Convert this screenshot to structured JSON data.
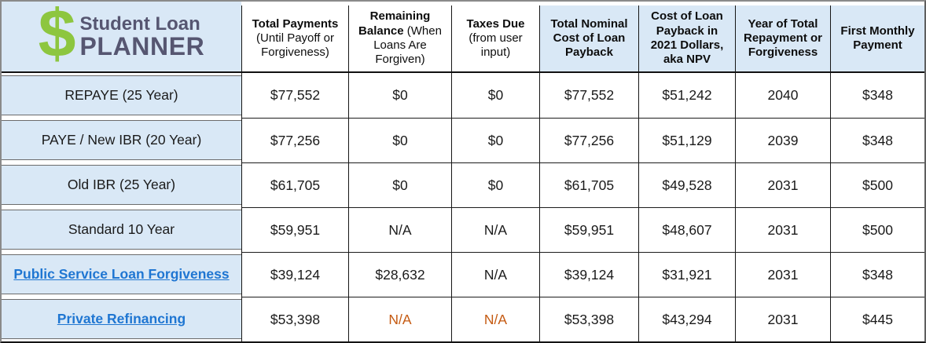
{
  "logo": {
    "dollar": "$",
    "line1": "Student Loan",
    "line2": "PLANNER"
  },
  "header": {
    "columns": [
      {
        "title": "Total Payments",
        "note": "(Until Payoff or Forgiveness)",
        "highlight": false
      },
      {
        "title": "Remaining Balance",
        "note": "(When Loans Are Forgiven)",
        "highlight": false
      },
      {
        "title": "Taxes Due",
        "note": "(from user input)",
        "highlight": false
      },
      {
        "title": "Total Nominal Cost of Loan Payback",
        "note": "",
        "highlight": true
      },
      {
        "title": "Cost of Loan Payback in 2021 Dollars, aka NPV",
        "note": "",
        "highlight": true
      },
      {
        "title": "Year of Total Repayment or Forgiveness",
        "note": "",
        "highlight": true
      },
      {
        "title": "First Monthly Payment",
        "note": "",
        "highlight": true
      }
    ]
  },
  "rows": [
    {
      "label": "REPAYE (25 Year)",
      "is_link": false,
      "orange_value_indices": [],
      "values": [
        "$77,552",
        "$0",
        "$0",
        "$77,552",
        "$51,242",
        "2040",
        "$348"
      ]
    },
    {
      "label": "PAYE / New IBR (20 Year)",
      "is_link": false,
      "orange_value_indices": [],
      "values": [
        "$77,256",
        "$0",
        "$0",
        "$77,256",
        "$51,129",
        "2039",
        "$348"
      ]
    },
    {
      "label": "Old IBR (25 Year)",
      "is_link": false,
      "orange_value_indices": [],
      "values": [
        "$61,705",
        "$0",
        "$0",
        "$61,705",
        "$49,528",
        "2031",
        "$500"
      ]
    },
    {
      "label": "Standard 10 Year",
      "is_link": false,
      "orange_value_indices": [],
      "values": [
        "$59,951",
        "N/A",
        "N/A",
        "$59,951",
        "$48,607",
        "2031",
        "$500"
      ]
    },
    {
      "label": "Public Service Loan Forgiveness",
      "is_link": true,
      "orange_value_indices": [],
      "values": [
        "$39,124",
        "$28,632",
        "N/A",
        "$39,124",
        "$31,921",
        "2031",
        "$348"
      ]
    },
    {
      "label": "Private Refinancing",
      "is_link": true,
      "orange_value_indices": [
        1,
        2
      ],
      "values": [
        "$53,398",
        "N/A",
        "N/A",
        "$53,398",
        "$43,294",
        "2031",
        "$445"
      ]
    }
  ],
  "colors": {
    "highlight_fill": "#d9e8f6",
    "link_blue": "#1f76d2",
    "na_orange": "#c55a11",
    "logo_green": "#8dc63f",
    "logo_navy": "#565671",
    "grid_line": "#161616"
  },
  "chart_data": {
    "type": "table",
    "columns": [
      "Plan",
      "Total Payments (Until Payoff or Forgiveness)",
      "Remaining Balance (When Loans Are Forgiven)",
      "Taxes Due (from user input)",
      "Total Nominal Cost of Loan Payback",
      "Cost of Loan Payback in 2021 Dollars, aka NPV",
      "Year of Total Repayment or Forgiveness",
      "First Monthly Payment"
    ],
    "rows": [
      [
        "REPAYE (25 Year)",
        "$77,552",
        "$0",
        "$0",
        "$77,552",
        "$51,242",
        "2040",
        "$348"
      ],
      [
        "PAYE / New IBR (20 Year)",
        "$77,256",
        "$0",
        "$0",
        "$77,256",
        "$51,129",
        "2039",
        "$348"
      ],
      [
        "Old IBR (25 Year)",
        "$61,705",
        "$0",
        "$0",
        "$61,705",
        "$49,528",
        "2031",
        "$500"
      ],
      [
        "Standard 10 Year",
        "$59,951",
        "N/A",
        "N/A",
        "$59,951",
        "$48,607",
        "2031",
        "$500"
      ],
      [
        "Public Service Loan Forgiveness",
        "$39,124",
        "$28,632",
        "N/A",
        "$39,124",
        "$31,921",
        "2031",
        "$348"
      ],
      [
        "Private Refinancing",
        "$53,398",
        "N/A",
        "N/A",
        "$53,398",
        "$43,294",
        "2031",
        "$445"
      ]
    ]
  }
}
